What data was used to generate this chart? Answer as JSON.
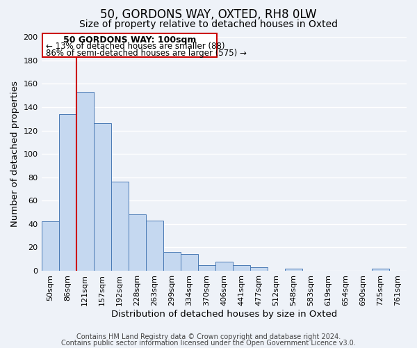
{
  "title": "50, GORDONS WAY, OXTED, RH8 0LW",
  "subtitle": "Size of property relative to detached houses in Oxted",
  "xlabel": "Distribution of detached houses by size in Oxted",
  "ylabel": "Number of detached properties",
  "categories": [
    "50sqm",
    "86sqm",
    "121sqm",
    "157sqm",
    "192sqm",
    "228sqm",
    "263sqm",
    "299sqm",
    "334sqm",
    "370sqm",
    "406sqm",
    "441sqm",
    "477sqm",
    "512sqm",
    "548sqm",
    "583sqm",
    "619sqm",
    "654sqm",
    "690sqm",
    "725sqm",
    "761sqm"
  ],
  "values": [
    42,
    134,
    153,
    126,
    76,
    48,
    43,
    16,
    14,
    5,
    8,
    5,
    3,
    0,
    2,
    0,
    0,
    0,
    0,
    2,
    0
  ],
  "bar_color": "#c5d8f0",
  "bar_edge_color": "#4a7ab5",
  "bar_width": 1.0,
  "ylim": [
    0,
    200
  ],
  "yticks": [
    0,
    20,
    40,
    60,
    80,
    100,
    120,
    140,
    160,
    180,
    200
  ],
  "vline_color": "#cc0000",
  "annotation_title": "50 GORDONS WAY: 100sqm",
  "annotation_line1": "← 13% of detached houses are smaller (88)",
  "annotation_line2": "86% of semi-detached houses are larger (575) →",
  "annotation_box_color": "#cc0000",
  "footer_line1": "Contains HM Land Registry data © Crown copyright and database right 2024.",
  "footer_line2": "Contains public sector information licensed under the Open Government Licence v3.0.",
  "background_color": "#eef2f8",
  "grid_color": "#ffffff",
  "title_fontsize": 12,
  "subtitle_fontsize": 10,
  "axis_label_fontsize": 9.5,
  "tick_fontsize": 8,
  "footer_fontsize": 7,
  "ann_title_fontsize": 9,
  "ann_text_fontsize": 8.5
}
